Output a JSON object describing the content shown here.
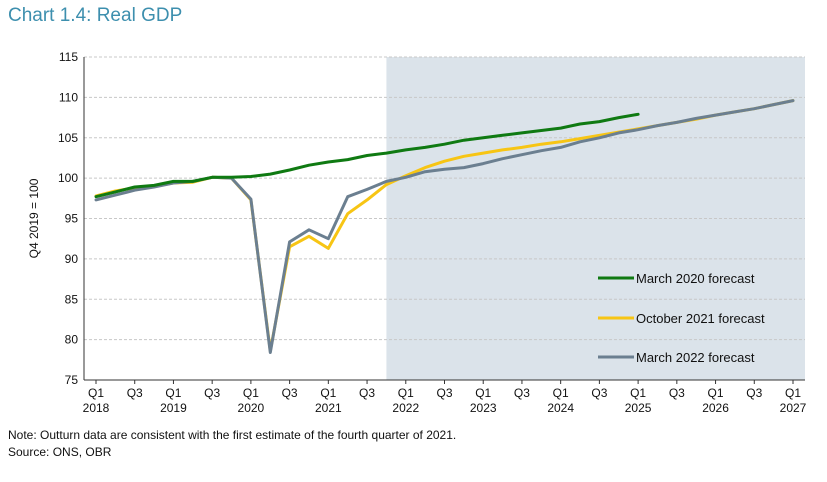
{
  "title": "Chart 1.4: Real GDP",
  "notes": {
    "note": "Note: Outturn data are consistent with the first estimate of the fourth quarter of 2021.",
    "source": "Source: ONS, OBR"
  },
  "colors": {
    "shade": "#dbe3ea",
    "march2020": "#0f7a12",
    "oct2021": "#f7c514",
    "march2022": "#6b7f90",
    "title": "#3d8fae"
  },
  "chart_data": {
    "type": "line",
    "title": "Chart 1.4: Real GDP",
    "xlabel": "",
    "ylabel": "Q4 2019 = 100",
    "ylim": [
      75,
      115
    ],
    "yticks": [
      75,
      80,
      85,
      90,
      95,
      100,
      105,
      110,
      115
    ],
    "grid": true,
    "legend_position": "bottom-right",
    "x": [
      "2018Q1",
      "2018Q2",
      "2018Q3",
      "2018Q4",
      "2019Q1",
      "2019Q2",
      "2019Q3",
      "2019Q4",
      "2020Q1",
      "2020Q2",
      "2020Q3",
      "2020Q4",
      "2021Q1",
      "2021Q2",
      "2021Q3",
      "2021Q4",
      "2022Q1",
      "2022Q2",
      "2022Q3",
      "2022Q4",
      "2023Q1",
      "2023Q2",
      "2023Q3",
      "2023Q4",
      "2024Q1",
      "2024Q2",
      "2024Q3",
      "2024Q4",
      "2025Q1",
      "2025Q2",
      "2025Q3",
      "2025Q4",
      "2026Q1",
      "2026Q2",
      "2026Q3",
      "2026Q4",
      "2027Q1"
    ],
    "x_tick_labels": [
      {
        "q": "Q1",
        "year": "2018"
      },
      {
        "q": "Q3",
        "year": ""
      },
      {
        "q": "Q1",
        "year": "2019"
      },
      {
        "q": "Q3",
        "year": ""
      },
      {
        "q": "Q1",
        "year": "2020"
      },
      {
        "q": "Q3",
        "year": ""
      },
      {
        "q": "Q1",
        "year": "2021"
      },
      {
        "q": "Q3",
        "year": ""
      },
      {
        "q": "Q1",
        "year": "2022"
      },
      {
        "q": "Q3",
        "year": ""
      },
      {
        "q": "Q1",
        "year": "2023"
      },
      {
        "q": "Q3",
        "year": ""
      },
      {
        "q": "Q1",
        "year": "2024"
      },
      {
        "q": "Q3",
        "year": ""
      },
      {
        "q": "Q1",
        "year": "2025"
      },
      {
        "q": "Q3",
        "year": ""
      },
      {
        "q": "Q1",
        "year": "2026"
      },
      {
        "q": "Q3",
        "year": ""
      },
      {
        "q": "Q1",
        "year": "2027"
      }
    ],
    "forecast_shading": {
      "from": "2021Q4",
      "to": "2027Q1"
    },
    "series": [
      {
        "name": "March 2020 forecast",
        "color": "#0f7a12",
        "values": [
          97.7,
          98.3,
          98.9,
          99.1,
          99.6,
          99.6,
          100.1,
          100.1,
          100.2,
          100.5,
          101.0,
          101.6,
          102.0,
          102.3,
          102.8,
          103.1,
          103.5,
          103.8,
          104.2,
          104.7,
          105.0,
          105.3,
          105.6,
          105.9,
          106.2,
          106.7,
          107.0,
          107.5,
          107.9,
          null,
          null,
          null,
          null,
          null,
          null,
          null,
          null
        ]
      },
      {
        "name": "October 2021 forecast",
        "color": "#f7c514",
        "values": [
          97.8,
          98.4,
          98.8,
          99.0,
          99.4,
          99.5,
          100.1,
          100.0,
          97.3,
          78.6,
          91.5,
          92.8,
          91.3,
          95.6,
          97.3,
          99.2,
          100.3,
          101.3,
          102.1,
          102.7,
          103.1,
          103.5,
          103.8,
          104.2,
          104.5,
          104.9,
          105.3,
          105.7,
          106.1,
          106.5,
          106.9,
          107.3,
          107.8,
          108.2,
          108.6,
          109.1,
          109.6
        ]
      },
      {
        "name": "March 2022 forecast",
        "color": "#6b7f90",
        "values": [
          97.3,
          97.9,
          98.5,
          98.9,
          99.4,
          99.6,
          100.1,
          100.0,
          97.4,
          78.4,
          92.1,
          93.6,
          92.5,
          97.7,
          98.6,
          99.6,
          100.1,
          100.8,
          101.1,
          101.3,
          101.8,
          102.4,
          102.9,
          103.4,
          103.8,
          104.5,
          105.0,
          105.6,
          106.0,
          106.5,
          106.9,
          107.4,
          107.8,
          108.2,
          108.6,
          109.1,
          109.6
        ]
      }
    ]
  }
}
